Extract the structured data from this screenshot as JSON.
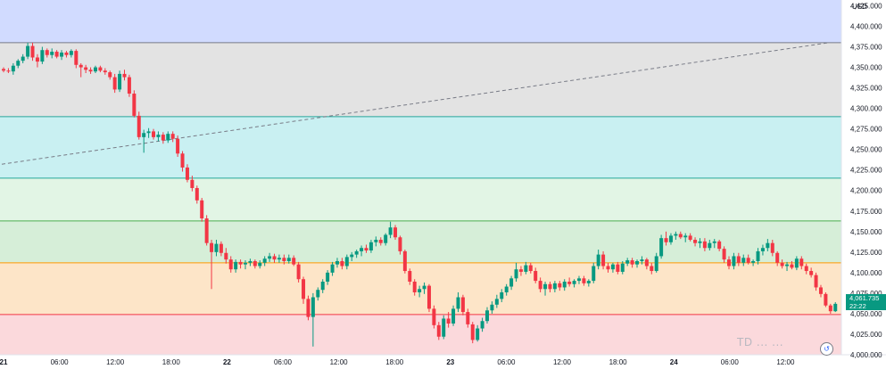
{
  "axis": {
    "currency": "USD",
    "y_ticks": [
      "4,425.000",
      "4,400.000",
      "4,375.000",
      "4,350.000",
      "4,325.000",
      "4,300.000",
      "4,275.000",
      "4,250.000",
      "4,225.000",
      "4,200.000",
      "4,175.000",
      "4,150.000",
      "4,125.000",
      "4,100.000",
      "4,075.000",
      "4,050.000",
      "4,025.000",
      "4,000.000"
    ],
    "x_ticks": [
      "21",
      "06:00",
      "12:00",
      "18:00",
      "22",
      "06:00",
      "12:00",
      "18:00",
      "23",
      "06:00",
      "12:00",
      "18:00",
      "24",
      "06:00",
      "12:00"
    ]
  },
  "price_tag": {
    "price": "4,061.735",
    "time": "22:22"
  },
  "watermark": {
    "text": "TD ... ..."
  },
  "colors": {
    "up": "#089981",
    "down": "#f23645",
    "tag": "#089981"
  },
  "chart_data": {
    "type": "candlestick",
    "ylim": [
      4000,
      4432
    ],
    "grid": false,
    "zones": [
      {
        "from": 4380,
        "to": 4432,
        "color": "#d1dbff"
      },
      {
        "from": 4290,
        "to": 4380,
        "color": "#e3e3e3"
      },
      {
        "from": 4215,
        "to": 4290,
        "color": "#c9f0f2"
      },
      {
        "from": 4163,
        "to": 4215,
        "color": "#e2f5e5"
      },
      {
        "from": 4112,
        "to": 4163,
        "color": "#d6eed8"
      },
      {
        "from": 4049,
        "to": 4112,
        "color": "#fde5c8"
      },
      {
        "from": 4000,
        "to": 4049,
        "color": "#fbd9dc"
      }
    ],
    "levels": [
      {
        "value": 4380,
        "color": "#787b86"
      },
      {
        "value": 4290,
        "color": "#26a69a"
      },
      {
        "value": 4215,
        "color": "#26a69a"
      },
      {
        "value": 4163,
        "color": "#4caf50"
      },
      {
        "value": 4112,
        "color": "#ff9800"
      },
      {
        "value": 4049,
        "color": "#f23645"
      }
    ],
    "trendline": {
      "from": [
        0,
        4232
      ],
      "to": [
        171,
        4380
      ]
    },
    "candles": [
      [
        4348,
        4350,
        4344,
        4346
      ],
      [
        4346,
        4349,
        4343,
        4345
      ],
      [
        4345,
        4355,
        4341,
        4352
      ],
      [
        4352,
        4360,
        4349,
        4358
      ],
      [
        4358,
        4366,
        4355,
        4363
      ],
      [
        4363,
        4380,
        4360,
        4376
      ],
      [
        4376,
        4380,
        4358,
        4362
      ],
      [
        4362,
        4366,
        4350,
        4357
      ],
      [
        4357,
        4375,
        4354,
        4371
      ],
      [
        4371,
        4373,
        4362,
        4365
      ],
      [
        4365,
        4373,
        4361,
        4369
      ],
      [
        4369,
        4371,
        4361,
        4363
      ],
      [
        4363,
        4371,
        4359,
        4368
      ],
      [
        4368,
        4370,
        4362,
        4365
      ],
      [
        4365,
        4372,
        4362,
        4370
      ],
      [
        4370,
        4372,
        4349,
        4353
      ],
      [
        4353,
        4355,
        4338,
        4350
      ],
      [
        4350,
        4353,
        4343,
        4347
      ],
      [
        4347,
        4350,
        4342,
        4345
      ],
      [
        4345,
        4352,
        4343,
        4350
      ],
      [
        4350,
        4352,
        4344,
        4346
      ],
      [
        4346,
        4349,
        4341,
        4344
      ],
      [
        4344,
        4346,
        4335,
        4338
      ],
      [
        4338,
        4342,
        4319,
        4323
      ],
      [
        4323,
        4346,
        4320,
        4342
      ],
      [
        4342,
        4347,
        4334,
        4338
      ],
      [
        4338,
        4341,
        4314,
        4318
      ],
      [
        4318,
        4322,
        4289,
        4291
      ],
      [
        4291,
        4296,
        4262,
        4265
      ],
      [
        4265,
        4274,
        4246,
        4270
      ],
      [
        4270,
        4276,
        4264,
        4272
      ],
      [
        4272,
        4275,
        4262,
        4265
      ],
      [
        4265,
        4272,
        4260,
        4268
      ],
      [
        4268,
        4271,
        4257,
        4261
      ],
      [
        4261,
        4272,
        4258,
        4269
      ],
      [
        4269,
        4272,
        4259,
        4263
      ],
      [
        4263,
        4267,
        4241,
        4245
      ],
      [
        4245,
        4248,
        4223,
        4228
      ],
      [
        4228,
        4232,
        4210,
        4213
      ],
      [
        4213,
        4218,
        4199,
        4203
      ],
      [
        4203,
        4206,
        4184,
        4188
      ],
      [
        4188,
        4191,
        4162,
        4166
      ],
      [
        4166,
        4170,
        4133,
        4136
      ],
      [
        4136,
        4140,
        4080,
        4125
      ],
      [
        4125,
        4140,
        4120,
        4135
      ],
      [
        4135,
        4138,
        4120,
        4124
      ],
      [
        4124,
        4130,
        4111,
        4116
      ],
      [
        4116,
        4120,
        4100,
        4104
      ],
      [
        4104,
        4116,
        4100,
        4113
      ],
      [
        4113,
        4116,
        4105,
        4110
      ],
      [
        4110,
        4115,
        4104,
        4112
      ],
      [
        4112,
        4117,
        4108,
        4114
      ],
      [
        4114,
        4116,
        4105,
        4108
      ],
      [
        4108,
        4115,
        4105,
        4112
      ],
      [
        4112,
        4120,
        4108,
        4117
      ],
      [
        4117,
        4124,
        4113,
        4120
      ],
      [
        4120,
        4123,
        4112,
        4116
      ],
      [
        4116,
        4122,
        4112,
        4118
      ],
      [
        4118,
        4122,
        4110,
        4114
      ],
      [
        4114,
        4122,
        4111,
        4118
      ],
      [
        4118,
        4121,
        4108,
        4110
      ],
      [
        4110,
        4113,
        4088,
        4092
      ],
      [
        4092,
        4095,
        4062,
        4068
      ],
      [
        4068,
        4072,
        4042,
        4046
      ],
      [
        4046,
        4075,
        4010,
        4070
      ],
      [
        4070,
        4082,
        4066,
        4079
      ],
      [
        4079,
        4092,
        4075,
        4089
      ],
      [
        4089,
        4103,
        4085,
        4100
      ],
      [
        4100,
        4113,
        4096,
        4110
      ],
      [
        4110,
        4118,
        4106,
        4114
      ],
      [
        4114,
        4118,
        4104,
        4108
      ],
      [
        4108,
        4122,
        4104,
        4119
      ],
      [
        4119,
        4125,
        4114,
        4122
      ],
      [
        4122,
        4128,
        4118,
        4126
      ],
      [
        4126,
        4133,
        4120,
        4130
      ],
      [
        4130,
        4134,
        4124,
        4127
      ],
      [
        4127,
        4140,
        4124,
        4137
      ],
      [
        4137,
        4144,
        4132,
        4140
      ],
      [
        4140,
        4143,
        4133,
        4136
      ],
      [
        4136,
        4148,
        4133,
        4146
      ],
      [
        4146,
        4162,
        4142,
        4155
      ],
      [
        4155,
        4158,
        4140,
        4143
      ],
      [
        4143,
        4145,
        4122,
        4126
      ],
      [
        4126,
        4128,
        4099,
        4102
      ],
      [
        4102,
        4105,
        4085,
        4089
      ],
      [
        4089,
        4092,
        4072,
        4076
      ],
      [
        4076,
        4084,
        4070,
        4080
      ],
      [
        4080,
        4088,
        4074,
        4084
      ],
      [
        4084,
        4086,
        4052,
        4056
      ],
      [
        4056,
        4060,
        4032,
        4036
      ],
      [
        4036,
        4040,
        4018,
        4022
      ],
      [
        4022,
        4048,
        4019,
        4044
      ],
      [
        4044,
        4052,
        4033,
        4038
      ],
      [
        4038,
        4060,
        4035,
        4056
      ],
      [
        4056,
        4076,
        4052,
        4070
      ],
      [
        4070,
        4073,
        4048,
        4052
      ],
      [
        4052,
        4056,
        4033,
        4037
      ],
      [
        4037,
        4040,
        4014,
        4018
      ],
      [
        4018,
        4036,
        4016,
        4032
      ],
      [
        4032,
        4045,
        4028,
        4041
      ],
      [
        4041,
        4058,
        4038,
        4054
      ],
      [
        4054,
        4065,
        4050,
        4061
      ],
      [
        4061,
        4073,
        4057,
        4068
      ],
      [
        4068,
        4080,
        4064,
        4076
      ],
      [
        4076,
        4086,
        4072,
        4083
      ],
      [
        4083,
        4096,
        4079,
        4093
      ],
      [
        4093,
        4112,
        4089,
        4104
      ],
      [
        4104,
        4108,
        4096,
        4101
      ],
      [
        4101,
        4113,
        4098,
        4109
      ],
      [
        4109,
        4112,
        4099,
        4102
      ],
      [
        4102,
        4106,
        4087,
        4090
      ],
      [
        4090,
        4094,
        4076,
        4080
      ],
      [
        4080,
        4089,
        4072,
        4086
      ],
      [
        4086,
        4089,
        4076,
        4080
      ],
      [
        4080,
        4090,
        4076,
        4087
      ],
      [
        4087,
        4090,
        4078,
        4082
      ],
      [
        4082,
        4092,
        4078,
        4089
      ],
      [
        4089,
        4094,
        4083,
        4086
      ],
      [
        4086,
        4092,
        4082,
        4090
      ],
      [
        4090,
        4096,
        4086,
        4093
      ],
      [
        4093,
        4096,
        4084,
        4087
      ],
      [
        4087,
        4092,
        4083,
        4090
      ],
      [
        4090,
        4112,
        4087,
        4108
      ],
      [
        4108,
        4128,
        4104,
        4122
      ],
      [
        4122,
        4126,
        4104,
        4108
      ],
      [
        4108,
        4112,
        4100,
        4104
      ],
      [
        4104,
        4112,
        4100,
        4110
      ],
      [
        4110,
        4113,
        4098,
        4101
      ],
      [
        4101,
        4114,
        4098,
        4111
      ],
      [
        4111,
        4118,
        4108,
        4115
      ],
      [
        4115,
        4118,
        4106,
        4110
      ],
      [
        4110,
        4116,
        4106,
        4114
      ],
      [
        4114,
        4120,
        4110,
        4116
      ],
      [
        4116,
        4118,
        4104,
        4108
      ],
      [
        4108,
        4112,
        4098,
        4102
      ],
      [
        4102,
        4124,
        4100,
        4120
      ],
      [
        4120,
        4146,
        4117,
        4142
      ],
      [
        4142,
        4150,
        4133,
        4137
      ],
      [
        4137,
        4148,
        4134,
        4145
      ],
      [
        4145,
        4150,
        4140,
        4147
      ],
      [
        4147,
        4150,
        4141,
        4143
      ],
      [
        4143,
        4148,
        4137,
        4145
      ],
      [
        4145,
        4148,
        4138,
        4140
      ],
      [
        4140,
        4143,
        4132,
        4136
      ],
      [
        4136,
        4142,
        4130,
        4138
      ],
      [
        4138,
        4142,
        4126,
        4130
      ],
      [
        4130,
        4140,
        4127,
        4136
      ],
      [
        4136,
        4141,
        4130,
        4138
      ],
      [
        4138,
        4140,
        4126,
        4129
      ],
      [
        4129,
        4132,
        4112,
        4116
      ],
      [
        4116,
        4120,
        4104,
        4108
      ],
      [
        4108,
        4124,
        4104,
        4120
      ],
      [
        4120,
        4124,
        4108,
        4112
      ],
      [
        4112,
        4122,
        4108,
        4118
      ],
      [
        4118,
        4122,
        4110,
        4112
      ],
      [
        4112,
        4116,
        4108,
        4114
      ],
      [
        4114,
        4130,
        4110,
        4126
      ],
      [
        4126,
        4134,
        4121,
        4130
      ],
      [
        4130,
        4141,
        4126,
        4136
      ],
      [
        4136,
        4140,
        4120,
        4124
      ],
      [
        4124,
        4126,
        4108,
        4112
      ],
      [
        4112,
        4116,
        4105,
        4108
      ],
      [
        4108,
        4113,
        4102,
        4110
      ],
      [
        4110,
        4114,
        4104,
        4106
      ],
      [
        4106,
        4120,
        4103,
        4117
      ],
      [
        4117,
        4120,
        4104,
        4108
      ],
      [
        4108,
        4111,
        4098,
        4102
      ],
      [
        4102,
        4106,
        4094,
        4097
      ],
      [
        4097,
        4100,
        4078,
        4082
      ],
      [
        4082,
        4085,
        4070,
        4074
      ],
      [
        4074,
        4076,
        4058,
        4060
      ],
      [
        4060,
        4062,
        4050,
        4053
      ],
      [
        4053,
        4064,
        4052,
        4062
      ]
    ]
  }
}
